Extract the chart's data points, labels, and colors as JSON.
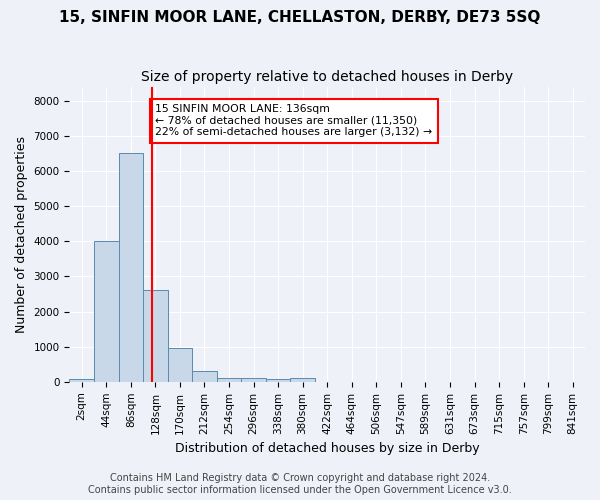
{
  "title": "15, SINFIN MOOR LANE, CHELLASTON, DERBY, DE73 5SQ",
  "subtitle": "Size of property relative to detached houses in Derby",
  "xlabel": "Distribution of detached houses by size in Derby",
  "ylabel": "Number of detached properties",
  "footer": "Contains HM Land Registry data © Crown copyright and database right 2024.\nContains public sector information licensed under the Open Government Licence v3.0.",
  "bin_labels": [
    "2sqm",
    "44sqm",
    "86sqm",
    "128sqm",
    "170sqm",
    "212sqm",
    "254sqm",
    "296sqm",
    "338sqm",
    "380sqm",
    "422sqm",
    "464sqm",
    "506sqm",
    "547sqm",
    "589sqm",
    "631sqm",
    "673sqm",
    "715sqm",
    "757sqm",
    "799sqm",
    "841sqm"
  ],
  "bar_values": [
    80,
    4000,
    6500,
    2600,
    950,
    310,
    120,
    100,
    80,
    100,
    0,
    0,
    0,
    0,
    0,
    0,
    0,
    0,
    0,
    0,
    0
  ],
  "bar_color": "#c8d8e8",
  "bar_edge_color": "#5a8ab0",
  "annotation_box_text": "15 SINFIN MOOR LANE: 136sqm\n← 78% of detached houses are smaller (11,350)\n22% of semi-detached houses are larger (3,132) →",
  "annotation_box_color": "white",
  "annotation_box_edge_color": "red",
  "redline_x": 2.85,
  "ylim": [
    0,
    8400
  ],
  "yticks": [
    0,
    1000,
    2000,
    3000,
    4000,
    5000,
    6000,
    7000,
    8000
  ],
  "background_color": "#eef2f8",
  "grid_color": "white",
  "title_fontsize": 11,
  "subtitle_fontsize": 10,
  "axis_label_fontsize": 9,
  "tick_fontsize": 7.5,
  "footer_fontsize": 7
}
